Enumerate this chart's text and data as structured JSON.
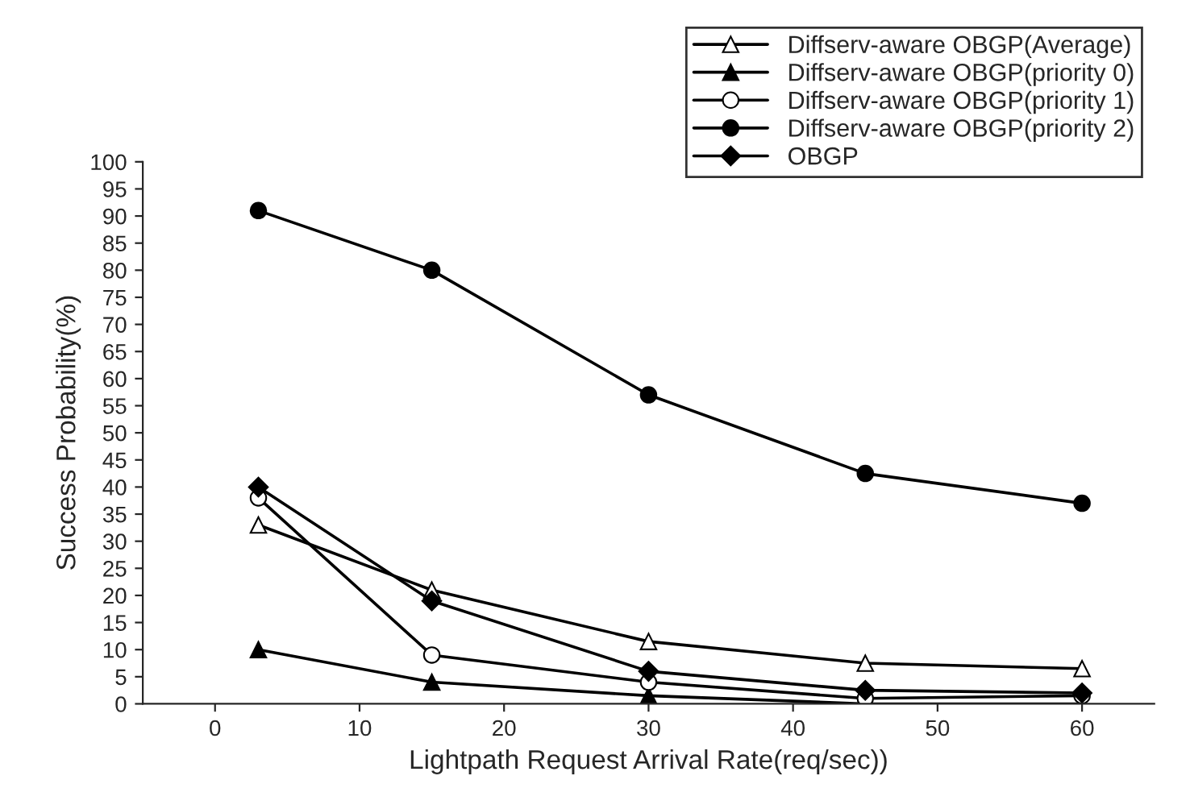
{
  "chart_data": {
    "type": "line",
    "xlabel": "Lightpath Request Arrival Rate(req/sec))",
    "ylabel": "Success Probability(%)",
    "x": [
      3,
      15,
      30,
      45,
      60
    ],
    "series": [
      {
        "name": "Diffserv-aware OBGP(Average)",
        "color": "#000000",
        "marker": "triangle",
        "values": [
          33,
          21,
          11.5,
          7.5,
          6.5
        ]
      },
      {
        "name": "Diffserv-aware OBGP(priority 0)",
        "color": "#000000",
        "marker": "triangle",
        "values": [
          10,
          4,
          1.5,
          0,
          0
        ]
      },
      {
        "name": "Diffserv-aware OBGP(priority 1)",
        "color": "#000000",
        "marker": "circle",
        "values": [
          38,
          9,
          4,
          1,
          1.5
        ]
      },
      {
        "name": "Diffserv-aware OBGP(priority 2)",
        "color": "#000000",
        "marker": "circle",
        "values": [
          91,
          80,
          57,
          42.5,
          37
        ]
      },
      {
        "name": "OBGP",
        "color": "#000000",
        "marker": "diamond",
        "values": [
          40,
          19,
          6,
          2.5,
          2
        ]
      }
    ],
    "xlim": [
      -5,
      65
    ],
    "xticks": [
      0,
      10,
      20,
      30,
      40,
      50,
      60
    ],
    "ylim": [
      0,
      100
    ],
    "yticks": [
      0,
      5,
      10,
      15,
      20,
      25,
      30,
      35,
      40,
      45,
      50,
      55,
      60,
      65,
      70,
      75,
      80,
      85,
      90,
      95,
      100
    ],
    "grid": false,
    "legend": "top right",
    "line_style": "solid"
  }
}
